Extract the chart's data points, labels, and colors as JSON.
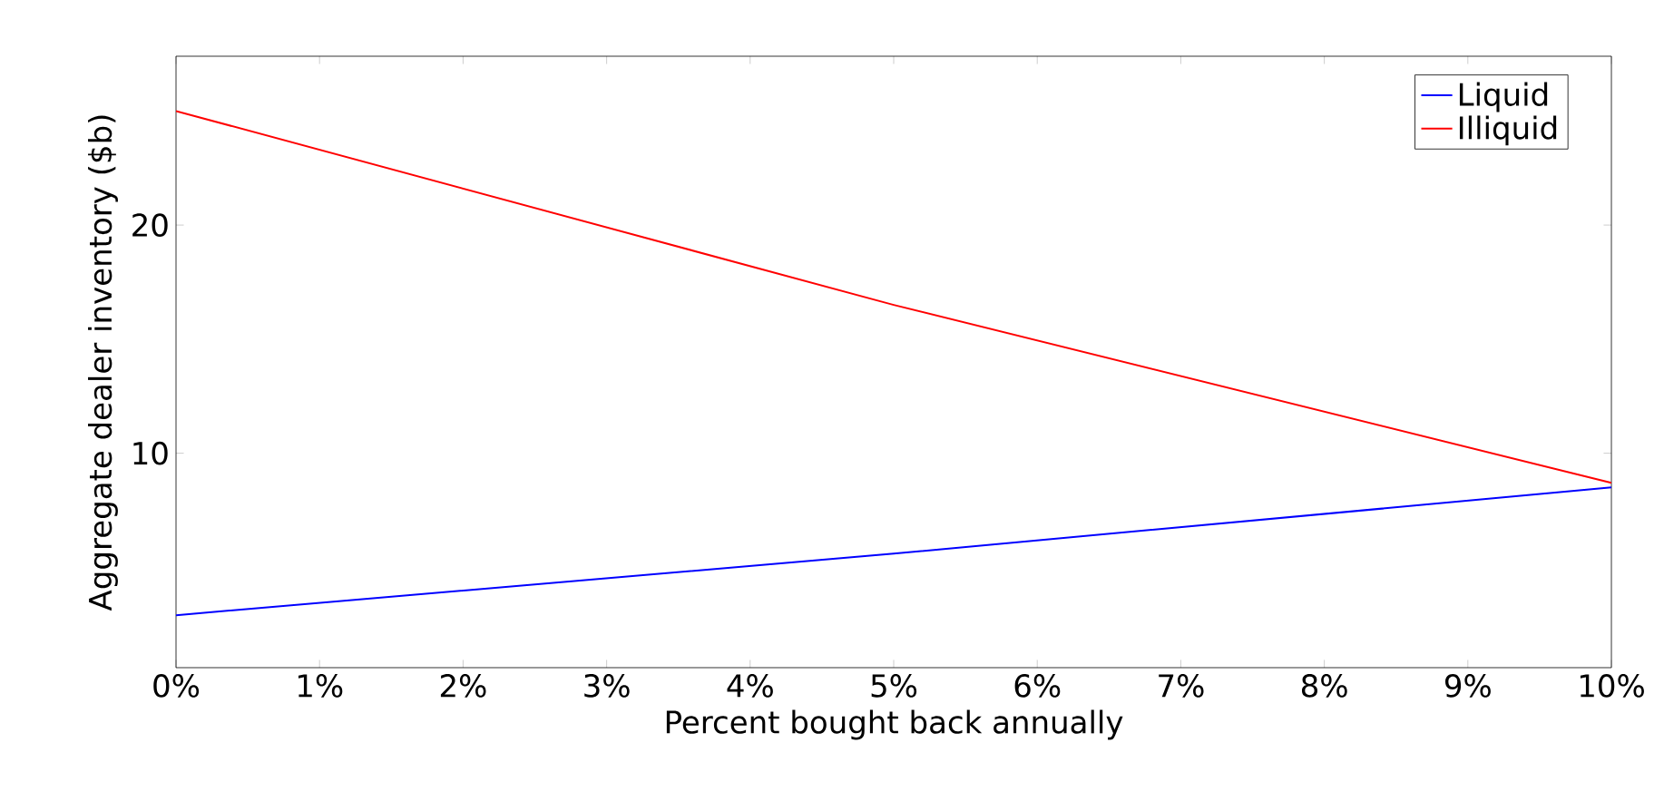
{
  "chart_data": {
    "type": "line",
    "xlabel": "Percent bought back annually",
    "ylabel": "Aggregate dealer inventory ($b)",
    "x": [
      0,
      5,
      10
    ],
    "series": [
      {
        "name": "Liquid",
        "color": "#0000ff",
        "values": [
          2.9,
          5.6,
          8.5
        ]
      },
      {
        "name": "Illiquid",
        "color": "#ff0000",
        "values": [
          25.0,
          16.5,
          8.7
        ]
      }
    ],
    "xlim": [
      0,
      10
    ],
    "ylim": [
      0.6,
      27.4
    ],
    "xticks": [
      {
        "value": 0,
        "label": "0%"
      },
      {
        "value": 1,
        "label": "1%"
      },
      {
        "value": 2,
        "label": "2%"
      },
      {
        "value": 3,
        "label": "3%"
      },
      {
        "value": 4,
        "label": "4%"
      },
      {
        "value": 5,
        "label": "5%"
      },
      {
        "value": 6,
        "label": "6%"
      },
      {
        "value": 7,
        "label": "7%"
      },
      {
        "value": 8,
        "label": "8%"
      },
      {
        "value": 9,
        "label": "9%"
      },
      {
        "value": 10,
        "label": "10%"
      }
    ],
    "yticks": [
      10,
      20
    ],
    "legend": "top right",
    "grid": false,
    "marker": "none",
    "line_style": "solid"
  }
}
